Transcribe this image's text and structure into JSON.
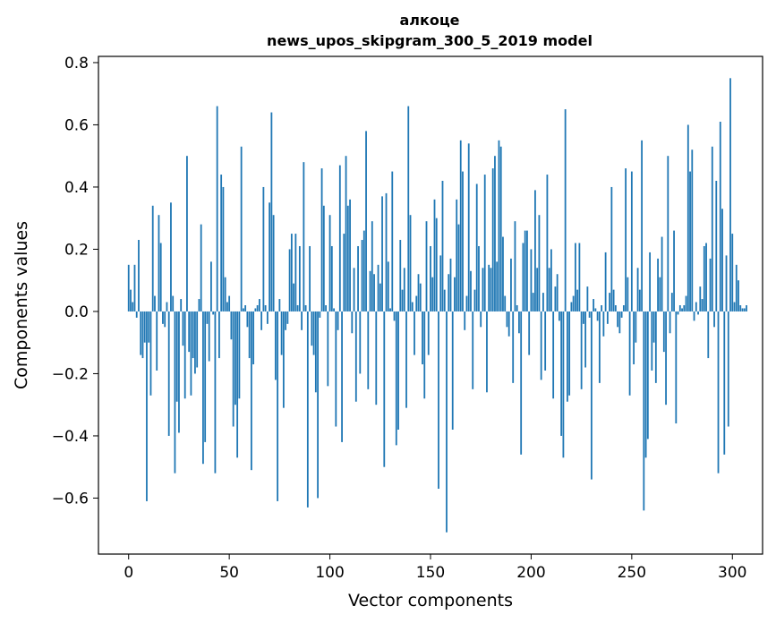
{
  "chart_data": {
    "type": "bar",
    "title": "алкоце",
    "subtitle": "news_upos_skipgram_300_5_2019 model",
    "xlabel": "Vector components",
    "ylabel": "Components values",
    "xlim": [
      -15,
      315
    ],
    "ylim": [
      -0.78,
      0.82
    ],
    "xticks": [
      0,
      50,
      100,
      150,
      200,
      250,
      300
    ],
    "xtick_labels": [
      "0",
      "50",
      "100",
      "150",
      "200",
      "250",
      "300"
    ],
    "yticks": [
      -0.6,
      -0.4,
      -0.2,
      0.0,
      0.2,
      0.4,
      0.6,
      0.8
    ],
    "ytick_labels": [
      "−0.6",
      "−0.4",
      "−0.2",
      "0.0",
      "0.2",
      "0.4",
      "0.6",
      "0.8"
    ],
    "grid": false,
    "bar_color": "#1f77b4",
    "values": [
      0.15,
      0.07,
      0.03,
      0.15,
      -0.02,
      0.23,
      -0.14,
      -0.15,
      -0.1,
      -0.61,
      -0.1,
      -0.27,
      0.34,
      0.05,
      -0.19,
      0.31,
      0.22,
      -0.04,
      -0.05,
      0.03,
      -0.4,
      0.35,
      0.05,
      -0.52,
      -0.29,
      -0.39,
      0.04,
      -0.11,
      -0.28,
      0.5,
      -0.13,
      -0.27,
      -0.15,
      -0.2,
      -0.18,
      0.04,
      0.28,
      -0.49,
      -0.42,
      -0.04,
      -0.16,
      0.16,
      -0.01,
      -0.52,
      0.66,
      -0.15,
      0.44,
      0.4,
      0.11,
      0.03,
      0.05,
      -0.09,
      -0.37,
      -0.3,
      -0.47,
      -0.28,
      0.53,
      0.01,
      0.02,
      -0.05,
      -0.15,
      -0.51,
      -0.17,
      0.01,
      0.02,
      0.04,
      -0.06,
      0.4,
      0.02,
      -0.04,
      0.35,
      0.64,
      0.31,
      -0.22,
      -0.61,
      0.04,
      -0.14,
      -0.31,
      -0.06,
      -0.04,
      0.2,
      0.25,
      0.09,
      0.25,
      0.02,
      0.21,
      -0.06,
      0.48,
      0.02,
      -0.63,
      0.21,
      -0.11,
      -0.14,
      -0.26,
      -0.6,
      -0.02,
      0.46,
      0.34,
      0.02,
      -0.24,
      0.31,
      0.21,
      0.01,
      -0.37,
      -0.06,
      0.47,
      -0.42,
      0.25,
      0.5,
      0.34,
      0.36,
      -0.07,
      0.14,
      -0.29,
      0.21,
      -0.2,
      0.23,
      0.26,
      0.58,
      -0.25,
      0.13,
      0.29,
      0.12,
      -0.3,
      0.15,
      0.09,
      0.37,
      -0.5,
      0.38,
      0.16,
      0.01,
      0.45,
      -0.03,
      -0.43,
      -0.38,
      0.23,
      0.07,
      0.14,
      -0.31,
      0.66,
      0.31,
      0.03,
      -0.14,
      0.05,
      0.12,
      0.09,
      -0.17,
      -0.28,
      0.29,
      -0.14,
      0.21,
      0.11,
      0.36,
      0.3,
      -0.57,
      0.18,
      0.42,
      0.07,
      -0.71,
      0.12,
      0.17,
      -0.38,
      0.11,
      0.36,
      0.28,
      0.55,
      0.45,
      -0.06,
      0.05,
      0.54,
      0.13,
      -0.25,
      0.07,
      0.41,
      0.21,
      -0.05,
      0.14,
      0.44,
      -0.26,
      0.15,
      0.14,
      0.46,
      0.5,
      0.16,
      0.55,
      0.53,
      0.24,
      0.05,
      -0.05,
      -0.08,
      0.17,
      -0.23,
      0.29,
      0.02,
      -0.07,
      -0.46,
      0.22,
      0.26,
      0.26,
      -0.14,
      0.2,
      0.06,
      0.39,
      0.14,
      0.31,
      -0.22,
      0.06,
      -0.19,
      0.44,
      0.14,
      0.2,
      -0.28,
      0.08,
      0.12,
      -0.03,
      -0.4,
      -0.47,
      0.65,
      -0.29,
      -0.27,
      0.03,
      0.05,
      0.22,
      0.07,
      0.22,
      -0.25,
      -0.04,
      -0.18,
      0.08,
      -0.02,
      -0.54,
      0.04,
      0.01,
      -0.03,
      -0.23,
      0.02,
      -0.08,
      0.19,
      -0.04,
      0.06,
      0.4,
      0.07,
      0.02,
      -0.05,
      -0.07,
      -0.02,
      0.02,
      0.46,
      0.11,
      -0.27,
      0.45,
      -0.17,
      -0.1,
      0.14,
      0.07,
      0.55,
      -0.64,
      -0.47,
      -0.41,
      0.19,
      -0.19,
      -0.1,
      -0.23,
      0.17,
      0.11,
      0.24,
      -0.13,
      -0.3,
      0.5,
      -0.07,
      0.06,
      0.26,
      -0.36,
      -0.01,
      0.02,
      0.01,
      0.02,
      0.05,
      0.6,
      0.45,
      0.52,
      -0.03,
      0.03,
      -0.01,
      0.08,
      0.04,
      0.21,
      0.22,
      -0.15,
      0.17,
      0.53,
      -0.05,
      0.42,
      -0.52,
      0.61,
      0.33,
      -0.46,
      0.18,
      -0.37,
      0.75,
      0.25,
      0.03,
      0.15,
      0.1,
      0.02,
      0.01,
      0.01,
      0.02
    ]
  }
}
